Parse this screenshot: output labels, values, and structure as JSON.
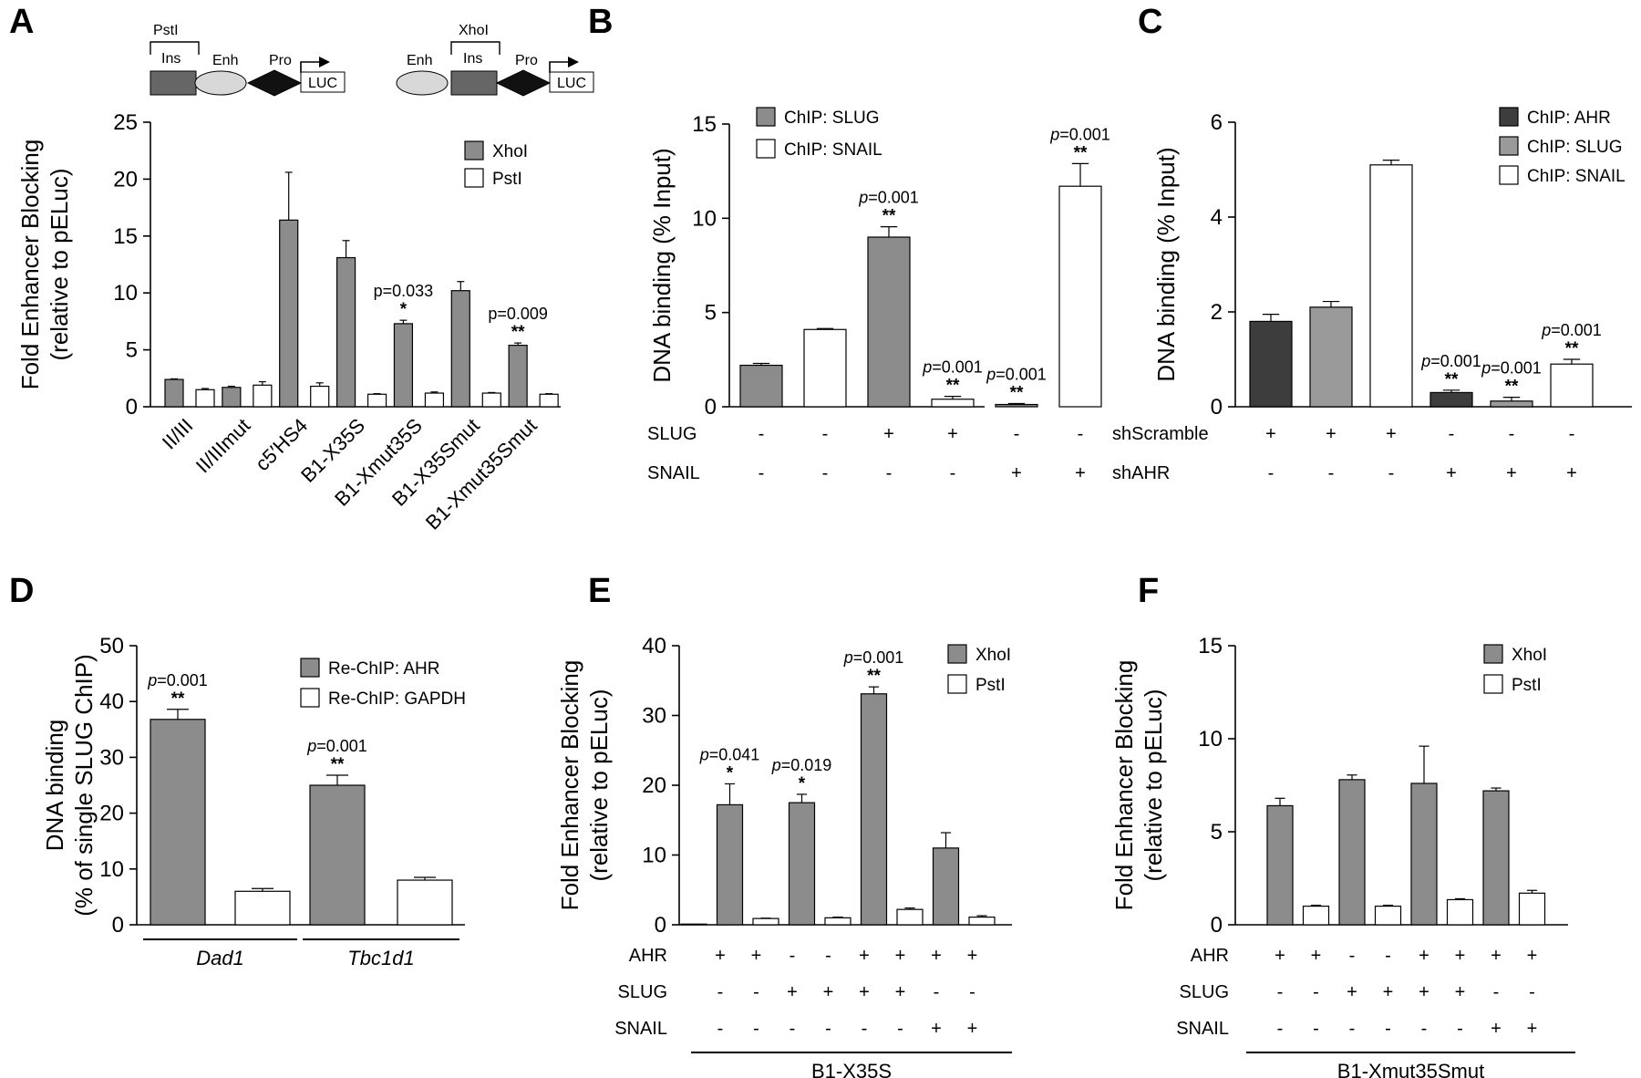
{
  "chart_data": [
    {
      "panel": "A",
      "type": "bar",
      "ylabel": [
        "Fold Enhancer Blocking",
        "(relative to pELuc)"
      ],
      "ylim": [
        0,
        25
      ],
      "yticks": [
        0,
        5,
        10,
        15,
        20,
        25
      ],
      "categories": [
        "II/III",
        "II/IIImut",
        "c5′HS4",
        "B1-X35S",
        "B1-Xmut35S",
        "B1-X35Smut",
        "B1-Xmut35Smut"
      ],
      "series": [
        {
          "name": "XhoI",
          "color": "#8c8c8c",
          "values": [
            2.4,
            1.7,
            16.4,
            13.1,
            7.3,
            10.2,
            5.4
          ],
          "errors": [
            0.05,
            0.1,
            4.2,
            1.5,
            0.3,
            0.8,
            0.2
          ]
        },
        {
          "name": "PstI",
          "color": "#ffffff",
          "values": [
            1.5,
            1.9,
            1.8,
            1.1,
            1.2,
            1.2,
            1.1
          ],
          "errors": [
            0.1,
            0.3,
            0.3,
            0.05,
            0.1,
            0.05,
            0.05
          ]
        }
      ],
      "annotations": [
        {
          "category": "B1-Xmut35S",
          "series": "XhoI",
          "pvalue": "p=0.033",
          "stars": "*"
        },
        {
          "category": "B1-Xmut35Smut",
          "series": "XhoI",
          "pvalue": "p=0.009",
          "stars": "**"
        }
      ],
      "legend": "top-right",
      "diagrams": [
        {
          "site": "PstI",
          "ins": "Ins",
          "enh": "Enh",
          "pro": "Pro",
          "reporter": "LUC"
        },
        {
          "site": "XhoI",
          "ins": "Ins",
          "enh": "Enh",
          "pro": "Pro",
          "reporter": "LUC"
        }
      ]
    },
    {
      "panel": "B",
      "type": "bar",
      "ylabel": [
        "DNA binding (% Input)"
      ],
      "ylim": [
        0,
        15
      ],
      "yticks": [
        0,
        5,
        10,
        15
      ],
      "categories": [
        "1",
        "2",
        "3",
        "4",
        "5",
        "6"
      ],
      "bar_series": [
        "ChIP: SLUG",
        "ChIP: SNAIL",
        "ChIP: SLUG",
        "ChIP: SNAIL",
        "ChIP: SLUG",
        "ChIP: SNAIL"
      ],
      "values": [
        2.2,
        4.1,
        9.0,
        0.4,
        0.12,
        11.7
      ],
      "errors": [
        0.1,
        0.05,
        0.55,
        0.15,
        0.05,
        1.2
      ],
      "series": [
        {
          "name": "ChIP: SLUG",
          "color": "#8c8c8c"
        },
        {
          "name": "ChIP: SNAIL",
          "color": "#ffffff"
        }
      ],
      "annotations": [
        {
          "bar": 2,
          "pvalue": "p=0.001",
          "stars": "**"
        },
        {
          "bar": 3,
          "pvalue": "p=0.001",
          "stars": "**"
        },
        {
          "bar": 4,
          "pvalue": "p=0.001",
          "stars": "**"
        },
        {
          "bar": 5,
          "pvalue": "p=0.001",
          "stars": "**"
        }
      ],
      "conditions": [
        {
          "label": "SLUG",
          "values": [
            "-",
            "-",
            "+",
            "+",
            "-",
            "-"
          ]
        },
        {
          "label": "SNAIL",
          "values": [
            "-",
            "-",
            "-",
            "-",
            "+",
            "+"
          ]
        }
      ],
      "legend": "top-left"
    },
    {
      "panel": "C",
      "type": "bar",
      "ylabel": [
        "DNA binding (% Input)"
      ],
      "ylim": [
        0,
        6
      ],
      "yticks": [
        0,
        2,
        4,
        6
      ],
      "categories": [
        "1",
        "2",
        "3",
        "4",
        "5",
        "6"
      ],
      "bar_series": [
        "ChIP: AHR",
        "ChIP: SLUG",
        "ChIP: SNAIL",
        "ChIP: AHR",
        "ChIP: SLUG",
        "ChIP: SNAIL"
      ],
      "values": [
        1.8,
        2.1,
        5.1,
        0.3,
        0.12,
        0.9
      ],
      "errors": [
        0.15,
        0.12,
        0.1,
        0.05,
        0.08,
        0.1
      ],
      "series": [
        {
          "name": "ChIP: AHR",
          "color": "#3d3d3d"
        },
        {
          "name": "ChIP: SLUG",
          "color": "#9a9a9a"
        },
        {
          "name": "ChIP: SNAIL",
          "color": "#ffffff"
        }
      ],
      "annotations": [
        {
          "bar": 3,
          "pvalue": "p=0.001",
          "stars": "**"
        },
        {
          "bar": 4,
          "pvalue": "p=0.001",
          "stars": "**"
        },
        {
          "bar": 5,
          "pvalue": "p=0.001",
          "stars": "**"
        }
      ],
      "conditions": [
        {
          "label": "shScramble",
          "values": [
            "+",
            "+",
            "+",
            "-",
            "-",
            "-"
          ]
        },
        {
          "label": "shAHR",
          "values": [
            "-",
            "-",
            "-",
            "+",
            "+",
            "+"
          ]
        }
      ],
      "legend": "top-right"
    },
    {
      "panel": "D",
      "type": "bar",
      "ylabel": [
        "DNA binding",
        "(% of single SLUG ChIP)"
      ],
      "ylim": [
        0,
        50
      ],
      "yticks": [
        0,
        10,
        20,
        30,
        40,
        50
      ],
      "categories": [
        "Dad1",
        "Tbc1d1"
      ],
      "series": [
        {
          "name": "Re-ChIP: AHR",
          "color": "#8c8c8c",
          "values": [
            36.8,
            25.0
          ],
          "errors": [
            1.8,
            1.8
          ]
        },
        {
          "name": "Re-ChIP: GAPDH",
          "color": "#ffffff",
          "values": [
            6.0,
            8.0
          ],
          "errors": [
            0.5,
            0.5
          ]
        }
      ],
      "annotations": [
        {
          "category": "Dad1",
          "series": "Re-ChIP: AHR",
          "pvalue": "p=0.001",
          "stars": "**"
        },
        {
          "category": "Tbc1d1",
          "series": "Re-ChIP: AHR",
          "pvalue": "p=0.001",
          "stars": "**"
        }
      ],
      "legend": "top-right"
    },
    {
      "panel": "E",
      "type": "bar",
      "ylabel": [
        "Fold Enhancer Blocking",
        "(relative to pELuc)"
      ],
      "ylim": [
        0,
        40
      ],
      "yticks": [
        0,
        10,
        20,
        30,
        40
      ],
      "categories": [
        "1",
        "2",
        "3",
        "4",
        "5",
        "6"
      ],
      "series": [
        {
          "name": "XhoI",
          "color": "#8c8c8c",
          "values": [
            17.2,
            17.5,
            33.1,
            11.0
          ],
          "errors": [
            3.0,
            1.2,
            1.0,
            2.2
          ],
          "positions": [
            0,
            1,
            3,
            4
          ]
        },
        {
          "name": "PstI",
          "color": "#ffffff",
          "values": [
            0.1,
            0.9,
            1.0,
            2.2,
            1.1
          ],
          "errors": [
            0.02,
            0.05,
            0.1,
            0.2,
            0.2
          ],
          "positions": [
            -1,
            0,
            1,
            3,
            4
          ]
        }
      ],
      "bars_order": [
        {
          "series": "PstI",
          "value": 0.1
        },
        {
          "series": "XhoI",
          "value": 17.2,
          "error": 3.0
        },
        {
          "series": "PstI",
          "value": 0.9,
          "error": 0.05
        },
        {
          "series": "XhoI",
          "value": 17.5,
          "error": 1.2
        },
        {
          "series": "PstI",
          "value": 1.0,
          "error": 0.1
        },
        {
          "series": "XhoI",
          "value": 33.1,
          "error": 1.0
        },
        {
          "series": "PstI",
          "value": 2.2,
          "error": 0.2
        },
        {
          "series": "XhoI",
          "value": 11.0,
          "error": 2.2
        },
        {
          "series": "PstI",
          "value": 1.1,
          "error": 0.2
        }
      ],
      "annotations": [
        {
          "bar": 1,
          "pvalue": "p=0.041",
          "stars": "*"
        },
        {
          "bar": 3,
          "pvalue": "p=0.019",
          "stars": "*"
        },
        {
          "bar": 5,
          "pvalue": "p=0.001",
          "stars": "**"
        }
      ],
      "conditions": [
        {
          "label": "AHR",
          "values": [
            "+",
            "+",
            "-",
            "-",
            "+",
            "+",
            "+",
            "+"
          ]
        },
        {
          "label": "SLUG",
          "values": [
            "-",
            "-",
            "+",
            "+",
            "+",
            "+",
            "-",
            "-"
          ]
        },
        {
          "label": "SNAIL",
          "values": [
            "-",
            "-",
            "-",
            "-",
            "-",
            "-",
            "+",
            "+"
          ]
        }
      ],
      "construct": "B1-X35S",
      "legend": "top-right"
    },
    {
      "panel": "F",
      "type": "bar",
      "ylabel": [
        "Fold Enhancer Blocking",
        "(relative to pELuc)"
      ],
      "ylim": [
        0,
        15
      ],
      "yticks": [
        0,
        5,
        10,
        15
      ],
      "bars_order": [
        {
          "series": "XhoI",
          "value": 6.4,
          "error": 0.4
        },
        {
          "series": "PstI",
          "value": 1.0,
          "error": 0.05
        },
        {
          "series": "XhoI",
          "value": 7.8,
          "error": 0.25
        },
        {
          "series": "PstI",
          "value": 1.0,
          "error": 0.05
        },
        {
          "series": "XhoI",
          "value": 7.6,
          "error": 2.0
        },
        {
          "series": "PstI",
          "value": 1.35,
          "error": 0.05
        },
        {
          "series": "XhoI",
          "value": 7.2,
          "error": 0.15
        },
        {
          "series": "PstI",
          "value": 1.7,
          "error": 0.15
        }
      ],
      "series": [
        {
          "name": "XhoI",
          "color": "#8c8c8c"
        },
        {
          "name": "PstI",
          "color": "#ffffff"
        }
      ],
      "conditions": [
        {
          "label": "AHR",
          "values": [
            "+",
            "+",
            "-",
            "-",
            "+",
            "+",
            "+",
            "+"
          ]
        },
        {
          "label": "SLUG",
          "values": [
            "-",
            "-",
            "+",
            "+",
            "+",
            "+",
            "-",
            "-"
          ]
        },
        {
          "label": "SNAIL",
          "values": [
            "-",
            "-",
            "-",
            "-",
            "-",
            "-",
            "+",
            "+"
          ]
        }
      ],
      "construct": "B1-Xmut35Smut",
      "legend": "top-right"
    }
  ]
}
